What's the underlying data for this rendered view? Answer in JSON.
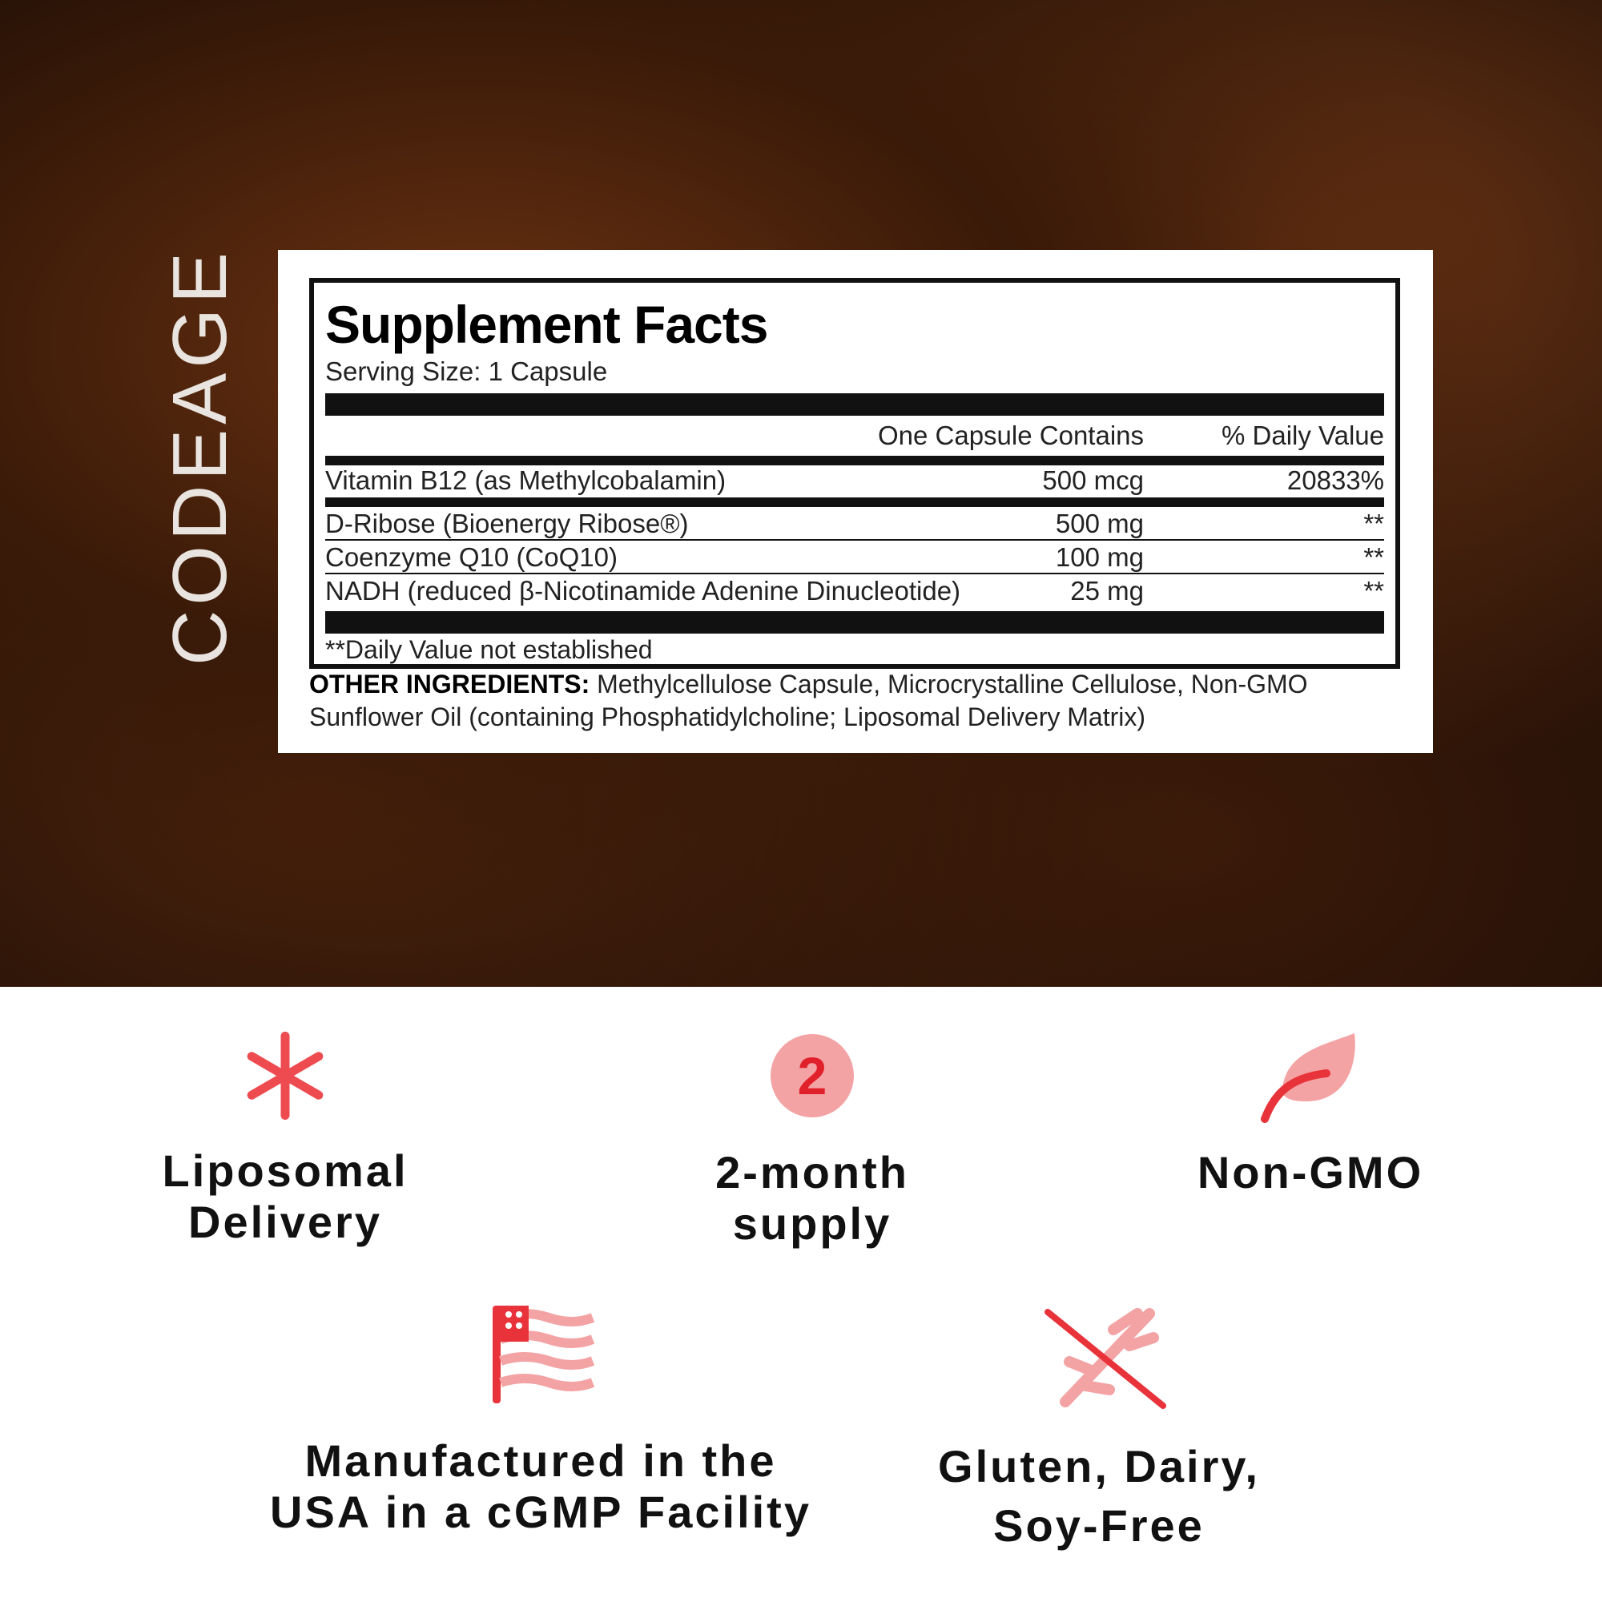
{
  "brand": "CODEAGE",
  "facts": {
    "title": "Supplement Facts",
    "serving": "Serving Size: 1 Capsule",
    "header": {
      "amount": "One Capsule Contains",
      "dv": "% Daily Value"
    },
    "rows": [
      {
        "name": "Vitamin B12 (as Methylcobalamin)",
        "amount": "500 mcg",
        "dv": "20833%"
      },
      {
        "name": "D-Ribose (Bioenergy Ribose®)",
        "amount": "500 mg",
        "dv": "**"
      },
      {
        "name": "Coenzyme Q10 (CoQ10)",
        "amount": "100 mg",
        "dv": "**"
      },
      {
        "name": "NADH (reduced β-Nicotinamide Adenine Dinucleotide)",
        "amount": "25 mg",
        "dv": "**"
      }
    ],
    "footnote": "**Daily Value not established",
    "other_label": "OTHER INGREDIENTS:",
    "other_text": " Methylcellulose Capsule, Microcrystalline Cellulose, Non-GMO Sunflower Oil (containing Phosphatidylcholine; Liposomal Delivery Matrix)"
  },
  "features": [
    {
      "icon": "asterisk-icon",
      "line1": "Liposomal",
      "line2": "Delivery"
    },
    {
      "icon": "number-2-icon",
      "number": "2",
      "line1": "2-month",
      "line2": "supply"
    },
    {
      "icon": "leaf-icon",
      "line1": "Non-GMO",
      "line2": ""
    },
    {
      "icon": "usa-flag-icon",
      "line1": "Manufactured in the",
      "line2": "USA in a cGMP Facility"
    },
    {
      "icon": "no-wheat-icon",
      "line1": "Gluten, Dairy,",
      "line2": "Soy-Free"
    }
  ],
  "colors": {
    "accent": "#e8333a",
    "accent_light": "#f4a3a5",
    "background": "#2a1208"
  }
}
